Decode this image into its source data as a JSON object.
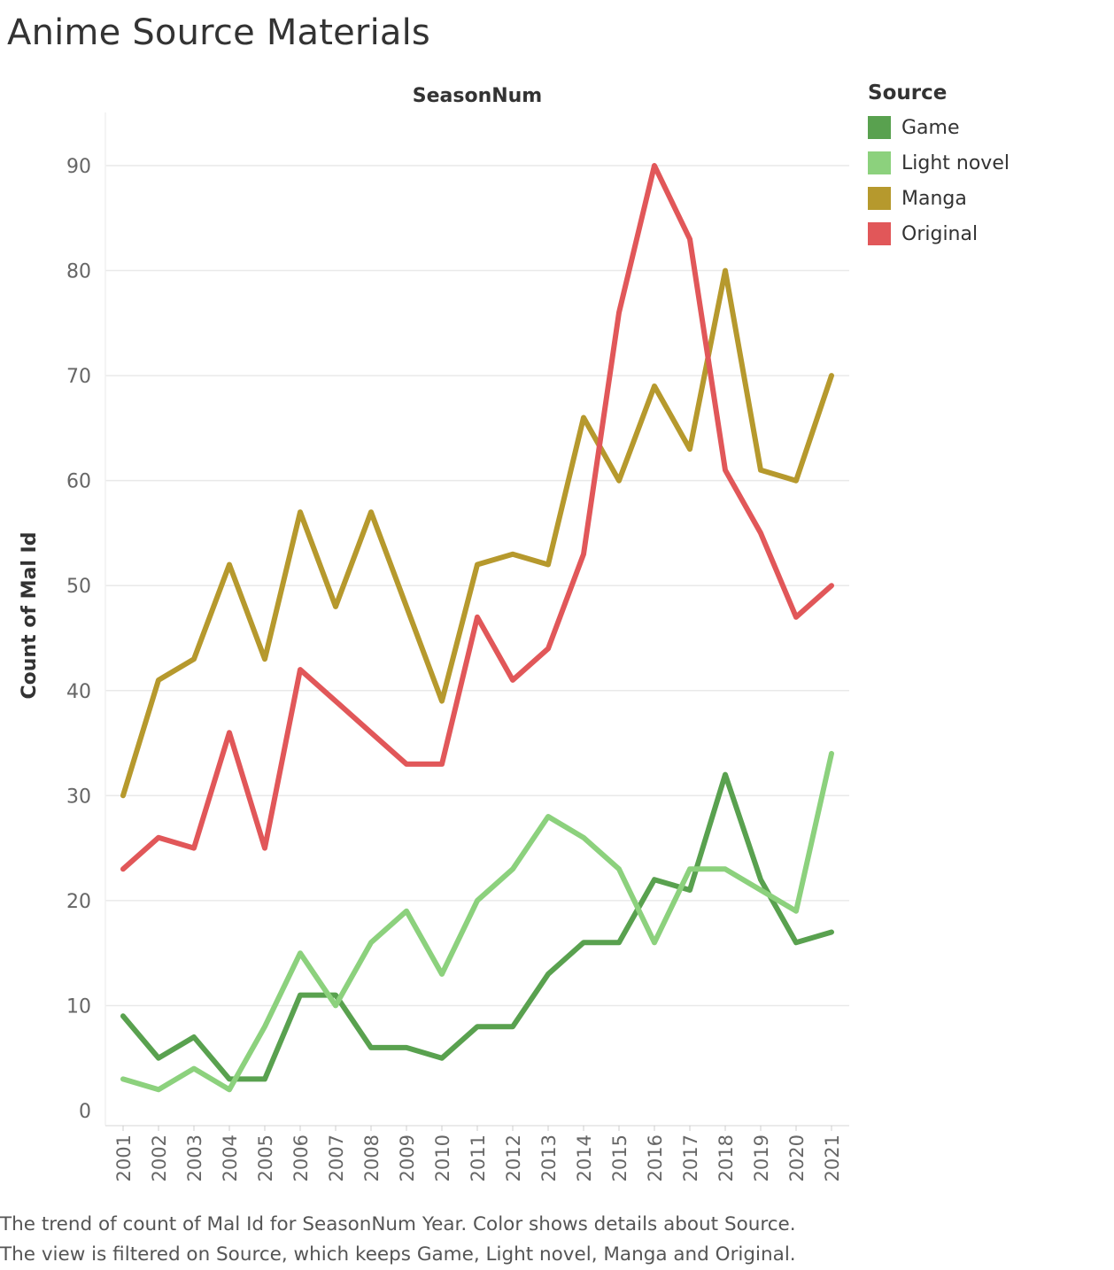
{
  "title": "Anime Source Materials",
  "caption": {
    "line1": "The trend of count of Mal Id for SeasonNum Year.  Color shows details about Source.",
    "line2": "The view is filtered on Source, which keeps Game, Light novel, Manga and Original."
  },
  "chart_data": {
    "type": "line",
    "title": "Anime Source Materials",
    "xlabel": "SeasonNum",
    "ylabel": "Count of Mal Id",
    "x": [
      "2001",
      "2002",
      "2003",
      "2004",
      "2005",
      "2006",
      "2007",
      "2008",
      "2009",
      "2010",
      "2011",
      "2012",
      "2013",
      "2014",
      "2015",
      "2016",
      "2017",
      "2018",
      "2019",
      "2020",
      "2021"
    ],
    "yticks": [
      0,
      10,
      20,
      30,
      40,
      50,
      60,
      70,
      80,
      90
    ],
    "ylim": [
      -1,
      95
    ],
    "grid": true,
    "legend_title": "Source",
    "legend_position": "top-right",
    "series": [
      {
        "name": "Game",
        "color": "#59a14f",
        "values": [
          9,
          5,
          7,
          3,
          3,
          11,
          11,
          6,
          6,
          5,
          8,
          8,
          13,
          16,
          16,
          22,
          21,
          32,
          22,
          16,
          17
        ]
      },
      {
        "name": "Light novel",
        "color": "#8cd17d",
        "values": [
          3,
          2,
          4,
          2,
          8,
          15,
          10,
          16,
          19,
          13,
          20,
          23,
          28,
          26,
          23,
          16,
          23,
          23,
          21,
          19,
          34
        ]
      },
      {
        "name": "Manga",
        "color": "#b6992d",
        "values": [
          30,
          41,
          43,
          52,
          43,
          57,
          48,
          57,
          48,
          39,
          52,
          53,
          52,
          66,
          60,
          69,
          63,
          80,
          61,
          60,
          70
        ]
      },
      {
        "name": "Original",
        "color": "#e15759",
        "values": [
          23,
          26,
          25,
          36,
          25,
          42,
          39,
          36,
          33,
          33,
          47,
          41,
          44,
          53,
          76,
          90,
          83,
          61,
          55,
          47,
          50
        ]
      }
    ]
  }
}
